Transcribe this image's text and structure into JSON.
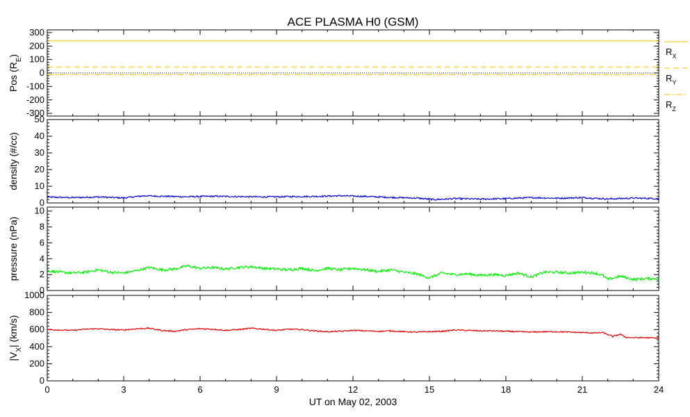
{
  "title": "ACE PLASMA H0 (GSM)",
  "xlabel": "UT on May 02, 2003",
  "colors": {
    "position": "#f5c400",
    "reference": "#000000",
    "density": "#0000cc",
    "pressure": "#00ee00",
    "velocity": "#dd0000"
  },
  "chart_data": [
    {
      "type": "line",
      "panel": "position",
      "ylabel": "Pos (R",
      "ylabel_sub": "E",
      "ylabel_close": ")",
      "xlim": [
        0,
        24
      ],
      "ylim": [
        -320,
        320
      ],
      "yticks": [
        300,
        200,
        100,
        0,
        -100,
        -200,
        -300
      ],
      "xticks": [
        0,
        3,
        6,
        9,
        12,
        15,
        18,
        21,
        24
      ],
      "reference_line": 0,
      "series": [
        {
          "name": "R",
          "sub": "X",
          "style": "solid",
          "x": [
            0,
            24
          ],
          "y": [
            238,
            238
          ]
        },
        {
          "name": "R",
          "sub": "Y",
          "style": "dashed",
          "x": [
            0,
            24
          ],
          "y": [
            45,
            45
          ]
        },
        {
          "name": "R",
          "sub": "Z",
          "style": "dashdot",
          "x": [
            0,
            24
          ],
          "y": [
            -12,
            -12
          ]
        }
      ]
    },
    {
      "type": "line",
      "panel": "density",
      "ylabel": "density (#/cc)",
      "xlim": [
        0,
        24
      ],
      "ylim": [
        0,
        50
      ],
      "yticks": [
        50,
        40,
        30,
        20,
        10,
        0
      ],
      "xticks": [
        0,
        3,
        6,
        9,
        12,
        15,
        18,
        21,
        24
      ],
      "series": [
        {
          "name": "density",
          "x": [
            0,
            1,
            2,
            3,
            3.8,
            4.5,
            5.5,
            6.5,
            7.5,
            8.5,
            9.5,
            10.5,
            11.5,
            12.5,
            13.5,
            14.5,
            15.2,
            16,
            17,
            18,
            19,
            20,
            21,
            22,
            23,
            24
          ],
          "y": [
            3.5,
            3.2,
            3.6,
            3.0,
            4.3,
            4.0,
            3.7,
            4.0,
            3.8,
            3.6,
            3.8,
            3.9,
            4.3,
            3.9,
            3.3,
            2.9,
            2.0,
            2.6,
            2.3,
            2.6,
            3.2,
            2.8,
            3.2,
            2.4,
            2.9,
            2.6
          ]
        }
      ]
    },
    {
      "type": "line",
      "panel": "pressure",
      "ylabel": "pressure (nPa)",
      "xlim": [
        0,
        24
      ],
      "ylim": [
        0,
        10.5
      ],
      "yticks": [
        10,
        8,
        6,
        4,
        2,
        0
      ],
      "xticks": [
        0,
        3,
        6,
        9,
        12,
        15,
        18,
        21,
        24
      ],
      "series": [
        {
          "name": "pressure",
          "x": [
            0,
            0.5,
            1,
            1.5,
            2,
            2.5,
            3,
            3.5,
            4,
            4.5,
            5,
            5.5,
            6,
            6.5,
            7,
            7.5,
            8,
            8.5,
            9,
            9.5,
            10,
            10.5,
            11,
            11.5,
            12,
            12.5,
            13,
            13.5,
            14,
            14.5,
            15,
            15.5,
            16,
            16.5,
            17,
            17.5,
            18,
            18.5,
            19,
            19.5,
            20,
            20.5,
            21,
            21.5,
            21.8,
            22,
            22.5,
            23,
            23.5,
            24
          ],
          "y": [
            2.5,
            2.3,
            2.2,
            2.3,
            2.6,
            2.3,
            2.2,
            2.5,
            2.9,
            2.6,
            2.7,
            3.1,
            2.8,
            2.9,
            2.7,
            2.9,
            3.0,
            2.8,
            2.7,
            2.6,
            2.8,
            2.5,
            2.8,
            2.6,
            2.8,
            2.6,
            2.4,
            2.6,
            2.3,
            2.1,
            1.6,
            2.2,
            2.0,
            2.1,
            1.9,
            2.0,
            1.9,
            2.2,
            1.7,
            2.3,
            2.3,
            2.2,
            2.3,
            2.2,
            1.9,
            1.4,
            1.8,
            1.4,
            1.5,
            1.5
          ]
        }
      ]
    },
    {
      "type": "line",
      "panel": "velocity",
      "ylabel": "|V",
      "ylabel_sub": "X",
      "ylabel_close": "| (km/s)",
      "xlim": [
        0,
        24
      ],
      "ylim": [
        0,
        1000
      ],
      "yticks": [
        1000,
        800,
        600,
        400,
        200,
        0
      ],
      "xticks": [
        0,
        3,
        6,
        9,
        12,
        15,
        18,
        21,
        24
      ],
      "series": [
        {
          "name": "velocity",
          "x": [
            0,
            0.5,
            1,
            1.5,
            2,
            2.5,
            3,
            3.5,
            4,
            4.5,
            5,
            5.5,
            6,
            6.5,
            7,
            7.5,
            8,
            8.5,
            9,
            9.5,
            10,
            10.5,
            11,
            11.5,
            12,
            12.5,
            13,
            13.5,
            14,
            14.5,
            15,
            15.5,
            16,
            16.5,
            17,
            17.5,
            18,
            18.5,
            19,
            19.5,
            20,
            20.5,
            21,
            21.5,
            21.8,
            22.2,
            22.5,
            22.7,
            23,
            23.5,
            24
          ],
          "y": [
            600,
            595,
            590,
            605,
            610,
            600,
            595,
            610,
            615,
            590,
            580,
            600,
            610,
            605,
            590,
            600,
            615,
            605,
            590,
            605,
            600,
            585,
            575,
            580,
            590,
            585,
            580,
            585,
            575,
            570,
            575,
            580,
            595,
            590,
            585,
            585,
            580,
            575,
            570,
            575,
            575,
            570,
            565,
            560,
            565,
            520,
            545,
            510,
            505,
            505,
            500
          ]
        }
      ]
    }
  ]
}
